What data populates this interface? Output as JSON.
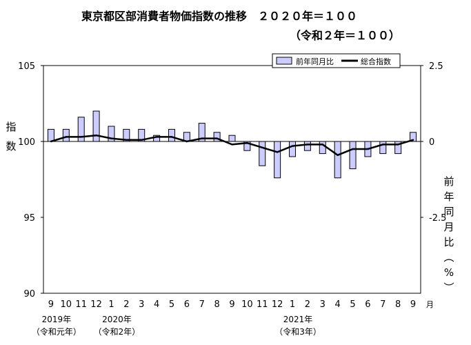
{
  "title": {
    "line1": "東京都区部消費者物価指数の推移　２０２０年＝１００",
    "line2": "（令和２年＝１００）"
  },
  "y_left_label": "指数",
  "y_right_label": "前年同月比（%）",
  "month_unit": "月",
  "year_labels": [
    {
      "year": "2019年",
      "era": "（令和元年）"
    },
    {
      "year": "2020年",
      "era": "（令和2年）"
    },
    {
      "year": "2021年",
      "era": "（令和3年）"
    }
  ],
  "colors": {
    "bar_fill": "#ccccff",
    "bar_stroke": "#000000",
    "line": "#000000"
  },
  "chart_data": {
    "type": "bar+line",
    "categories": [
      "9",
      "10",
      "11",
      "12",
      "1",
      "2",
      "3",
      "4",
      "5",
      "6",
      "7",
      "8",
      "9",
      "10",
      "11",
      "12",
      "1",
      "2",
      "3",
      "4",
      "5",
      "6",
      "7",
      "8",
      "9"
    ],
    "series": [
      {
        "name": "前年同月比",
        "type": "bar",
        "axis": "right",
        "values": [
          0.4,
          0.4,
          0.8,
          1.0,
          0.5,
          0.4,
          0.4,
          0.2,
          0.4,
          0.3,
          0.6,
          0.3,
          0.2,
          -0.3,
          -0.8,
          -1.2,
          -0.5,
          -0.3,
          -0.4,
          -1.2,
          -0.9,
          -0.5,
          -0.4,
          -0.4,
          0.3
        ]
      },
      {
        "name": "総合指数",
        "type": "line",
        "axis": "left",
        "values": [
          100.0,
          100.3,
          100.3,
          100.4,
          100.2,
          100.1,
          100.1,
          100.3,
          100.3,
          100.0,
          100.2,
          100.2,
          99.8,
          99.9,
          99.6,
          99.3,
          99.7,
          99.8,
          99.8,
          99.1,
          99.5,
          99.5,
          99.8,
          99.8,
          100.1
        ]
      }
    ],
    "y_left": {
      "ticks": [
        90,
        95,
        100,
        105
      ],
      "range": [
        90,
        105
      ]
    },
    "y_right": {
      "ticks": [
        "-2.5",
        "0",
        "2.5"
      ],
      "range": [
        -5,
        2.5
      ]
    },
    "legend_position": "top-right",
    "grid": false
  }
}
